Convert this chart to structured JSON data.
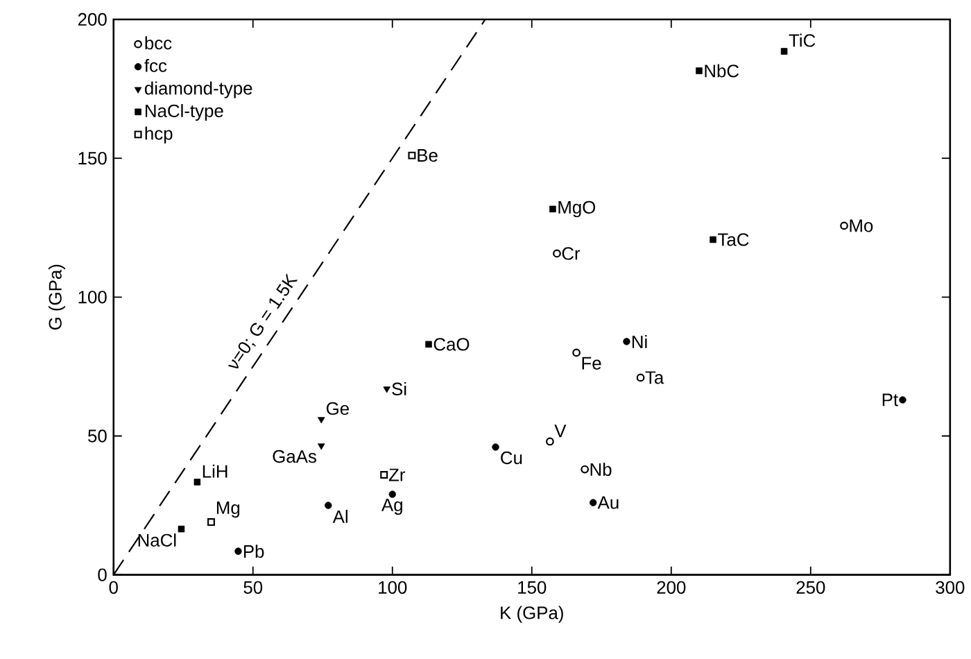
{
  "chart_data": {
    "type": "scatter",
    "xlabel": "K  (GPa)",
    "ylabel": "G  (GPa)",
    "xlim": [
      0,
      300
    ],
    "ylim": [
      0,
      200
    ],
    "xticks": [
      0,
      50,
      100,
      150,
      200,
      250,
      300
    ],
    "yticks": [
      0,
      50,
      100,
      150,
      200
    ],
    "legend": "top left",
    "grid": false,
    "series": [
      {
        "name": "bcc",
        "color": "#000000",
        "marker": "circle",
        "x": [
          159,
          262,
          166,
          189,
          156.5,
          169
        ],
        "values": [
          115.7,
          125.7,
          80,
          71,
          48,
          38
        ]
      },
      {
        "name": "fcc",
        "color": "#000000",
        "marker": "circle",
        "x": [
          184,
          283,
          172,
          137,
          77,
          100,
          44.7
        ],
        "values": [
          84,
          63,
          26,
          46,
          25,
          29,
          8.5
        ]
      },
      {
        "name": "diamond-type",
        "color": "#000000",
        "marker": "triangle",
        "x": [
          98,
          74.5,
          74.5
        ],
        "values": [
          67,
          56,
          46.5
        ]
      },
      {
        "name": "NaCl-type",
        "color": "#000000",
        "marker": "square",
        "x": [
          113,
          30,
          24.3,
          157.5,
          215,
          210,
          240.5
        ],
        "values": [
          83,
          33.4,
          16.5,
          131.7,
          120.7,
          181.5,
          188.5
        ]
      },
      {
        "name": "hcp",
        "color": "#000000",
        "marker": "square",
        "x": [
          107,
          97,
          35
        ],
        "values": [
          151,
          36,
          19
        ]
      },
      {
        "type": "line",
        "color": "#000000",
        "line_style": "dashed",
        "marker": "none",
        "x": [
          0,
          133.3
        ],
        "values": [
          0,
          200
        ]
      }
    ],
    "annotations": [
      {
        "text": "ν=0; G = 1.5K",
        "x": 60,
        "y": 90
      },
      {
        "text": "Cr",
        "x": 159,
        "y": 115.7
      },
      {
        "text": "Mo",
        "x": 262,
        "y": 125.7
      },
      {
        "text": "Fe",
        "x": 166,
        "y": 80
      },
      {
        "text": "Ta",
        "x": 189,
        "y": 71
      },
      {
        "text": "V",
        "x": 156.5,
        "y": 48
      },
      {
        "text": "Nb",
        "x": 169,
        "y": 38
      },
      {
        "text": "Ni",
        "x": 184,
        "y": 84
      },
      {
        "text": "Pt",
        "x": 283,
        "y": 63
      },
      {
        "text": "Au",
        "x": 172,
        "y": 26
      },
      {
        "text": "Cu",
        "x": 137,
        "y": 46
      },
      {
        "text": "Al",
        "x": 77,
        "y": 25
      },
      {
        "text": "Ag",
        "x": 100,
        "y": 29
      },
      {
        "text": "Pb",
        "x": 44.7,
        "y": 8.5
      },
      {
        "text": "Si",
        "x": 98,
        "y": 67
      },
      {
        "text": "Ge",
        "x": 74.5,
        "y": 56
      },
      {
        "text": "GaAs",
        "x": 74.5,
        "y": 46.5
      },
      {
        "text": "CaO",
        "x": 113,
        "y": 83
      },
      {
        "text": "LiH",
        "x": 30,
        "y": 33.4
      },
      {
        "text": "NaCl",
        "x": 24.3,
        "y": 16.5
      },
      {
        "text": "MgO",
        "x": 157.5,
        "y": 131.7
      },
      {
        "text": "TaC",
        "x": 215,
        "y": 120.7
      },
      {
        "text": "NbC",
        "x": 210,
        "y": 181.5
      },
      {
        "text": "TiC",
        "x": 240.5,
        "y": 188.5
      },
      {
        "text": "Be",
        "x": 107,
        "y": 151
      },
      {
        "text": "Zr",
        "x": 97,
        "y": 36
      },
      {
        "text": "Mg",
        "x": 35,
        "y": 19
      }
    ]
  }
}
